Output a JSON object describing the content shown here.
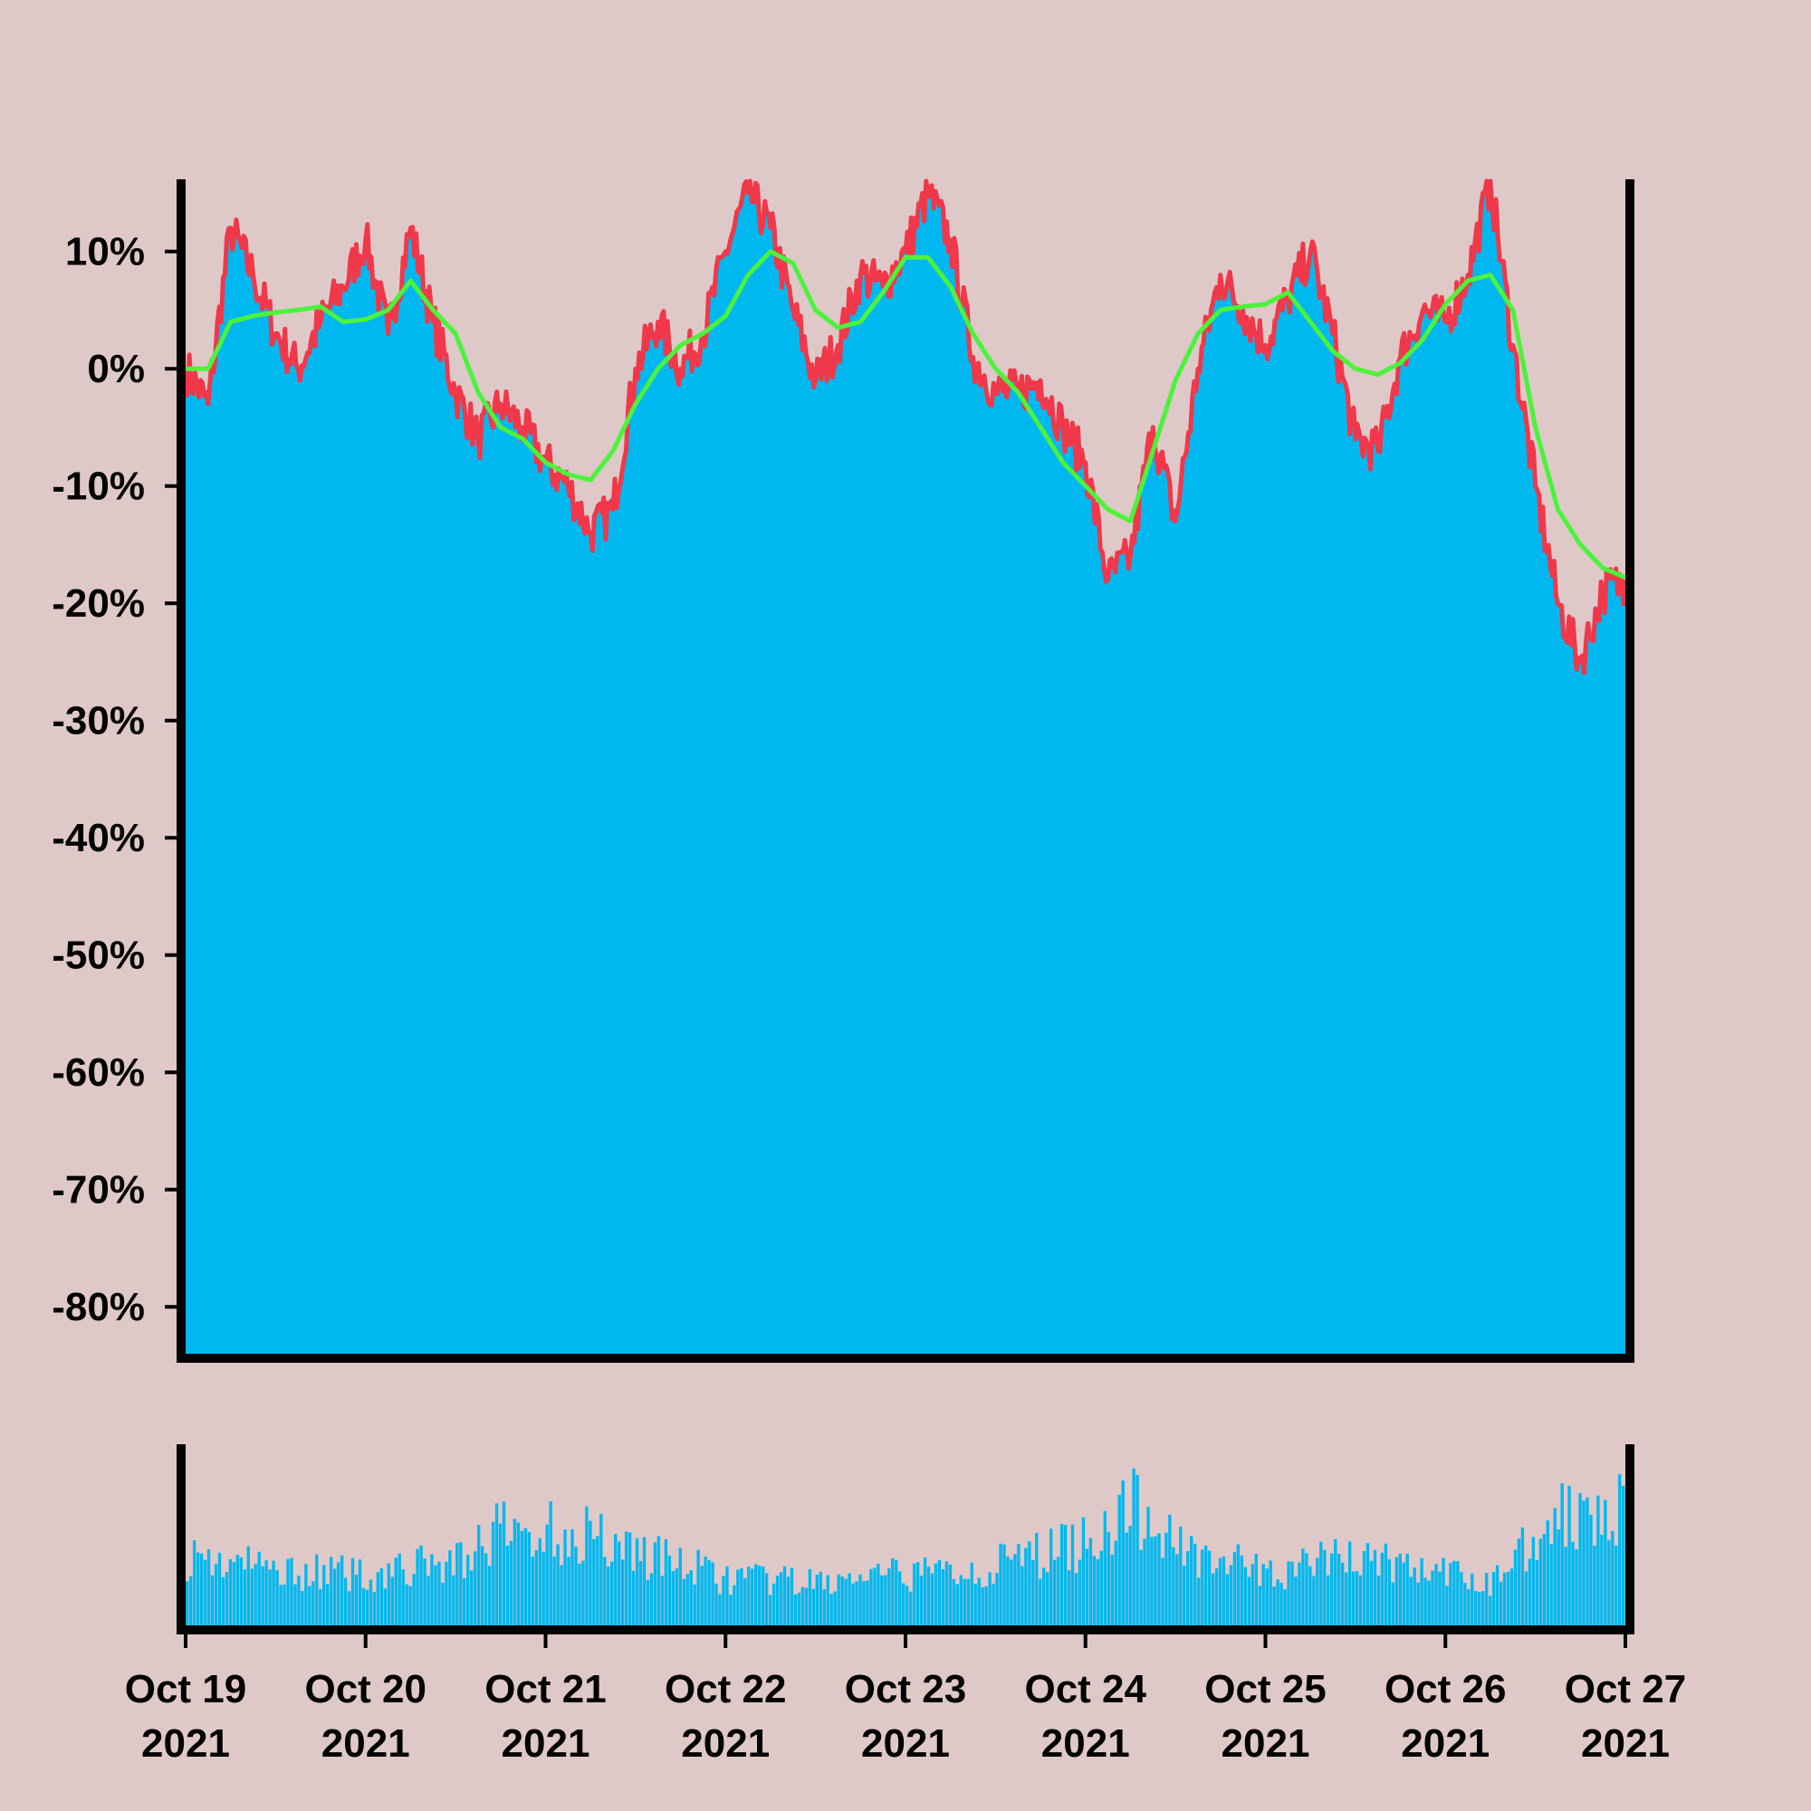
{
  "chart_data": {
    "type": "area",
    "x_start": "2021-10-19",
    "x_end": "2021-10-27",
    "ylim": [
      -84,
      16
    ],
    "y_ticks": [
      10,
      0,
      -10,
      -20,
      -30,
      -40,
      -50,
      -60,
      -70,
      -80
    ],
    "y_tick_labels": [
      "10%",
      "0%",
      "-10%",
      "-20%",
      "-30%",
      "-40%",
      "-50%",
      "-60%",
      "-70%",
      "-80%"
    ],
    "x_ticks": [
      "2021-10-19",
      "2021-10-20",
      "2021-10-21",
      "2021-10-22",
      "2021-10-23",
      "2021-10-24",
      "2021-10-25",
      "2021-10-26",
      "2021-10-27"
    ],
    "x_tick_labels": [
      {
        "date": "Oct 19",
        "year": "2021"
      },
      {
        "date": "Oct 20",
        "year": "2021"
      },
      {
        "date": "Oct 21",
        "year": "2021"
      },
      {
        "date": "Oct 22",
        "year": "2021"
      },
      {
        "date": "Oct 23",
        "year": "2021"
      },
      {
        "date": "Oct 24",
        "year": "2021"
      },
      {
        "date": "Oct 25",
        "year": "2021"
      },
      {
        "date": "Oct 26",
        "year": "2021"
      },
      {
        "date": "Oct 27",
        "year": "2021"
      }
    ],
    "price_series": {
      "x": [
        "2021-10-19 00:00",
        "2021-10-19 03:00",
        "2021-10-19 06:00",
        "2021-10-19 09:00",
        "2021-10-19 12:00",
        "2021-10-19 15:00",
        "2021-10-19 18:00",
        "2021-10-19 21:00",
        "2021-10-20 00:00",
        "2021-10-20 03:00",
        "2021-10-20 06:00",
        "2021-10-20 09:00",
        "2021-10-20 12:00",
        "2021-10-20 15:00",
        "2021-10-20 18:00",
        "2021-10-20 21:00",
        "2021-10-21 00:00",
        "2021-10-21 03:00",
        "2021-10-21 06:00",
        "2021-10-21 09:00",
        "2021-10-21 12:00",
        "2021-10-21 15:00",
        "2021-10-21 18:00",
        "2021-10-21 21:00",
        "2021-10-22 00:00",
        "2021-10-22 03:00",
        "2021-10-22 06:00",
        "2021-10-22 09:00",
        "2021-10-22 12:00",
        "2021-10-22 15:00",
        "2021-10-22 18:00",
        "2021-10-22 21:00",
        "2021-10-23 00:00",
        "2021-10-23 03:00",
        "2021-10-23 06:00",
        "2021-10-23 09:00",
        "2021-10-23 12:00",
        "2021-10-23 15:00",
        "2021-10-23 18:00",
        "2021-10-23 21:00",
        "2021-10-24 00:00",
        "2021-10-24 03:00",
        "2021-10-24 06:00",
        "2021-10-24 09:00",
        "2021-10-24 12:00",
        "2021-10-24 15:00",
        "2021-10-24 18:00",
        "2021-10-24 21:00",
        "2021-10-25 00:00",
        "2021-10-25 03:00",
        "2021-10-25 06:00",
        "2021-10-25 09:00",
        "2021-10-25 12:00",
        "2021-10-25 15:00",
        "2021-10-25 18:00",
        "2021-10-25 21:00",
        "2021-10-26 00:00",
        "2021-10-26 03:00",
        "2021-10-26 06:00",
        "2021-10-26 09:00",
        "2021-10-26 12:00",
        "2021-10-26 15:00",
        "2021-10-26 18:00",
        "2021-10-26 21:00",
        "2021-10-27 00:00"
      ],
      "y": [
        0,
        -3,
        12,
        8,
        3,
        0,
        4,
        7,
        11,
        3,
        12,
        4,
        -2,
        -6,
        -3,
        -5,
        -8,
        -10,
        -14,
        -12,
        0,
        4,
        0,
        3,
        10,
        15,
        12,
        5,
        -1,
        2,
        8,
        7,
        10,
        15,
        11,
        1,
        -2,
        -2,
        -1,
        -5,
        -8,
        -18,
        -16,
        -5,
        -13,
        0,
        8,
        5,
        2,
        6,
        10,
        3,
        -6,
        -7,
        1,
        5,
        4,
        8,
        16,
        2,
        -10,
        -20,
        -25,
        -19,
        -18
      ]
    },
    "moving_average": {
      "x": [
        "2021-10-19 00:00",
        "2021-10-19 03:00",
        "2021-10-19 06:00",
        "2021-10-19 09:00",
        "2021-10-19 12:00",
        "2021-10-19 15:00",
        "2021-10-19 18:00",
        "2021-10-19 21:00",
        "2021-10-20 00:00",
        "2021-10-20 03:00",
        "2021-10-20 06:00",
        "2021-10-20 09:00",
        "2021-10-20 12:00",
        "2021-10-20 15:00",
        "2021-10-20 18:00",
        "2021-10-20 21:00",
        "2021-10-21 00:00",
        "2021-10-21 03:00",
        "2021-10-21 06:00",
        "2021-10-21 09:00",
        "2021-10-21 12:00",
        "2021-10-21 15:00",
        "2021-10-21 18:00",
        "2021-10-21 21:00",
        "2021-10-22 00:00",
        "2021-10-22 03:00",
        "2021-10-22 06:00",
        "2021-10-22 09:00",
        "2021-10-22 12:00",
        "2021-10-22 15:00",
        "2021-10-22 18:00",
        "2021-10-22 21:00",
        "2021-10-23 00:00",
        "2021-10-23 03:00",
        "2021-10-23 06:00",
        "2021-10-23 09:00",
        "2021-10-23 12:00",
        "2021-10-23 15:00",
        "2021-10-23 18:00",
        "2021-10-23 21:00",
        "2021-10-24 00:00",
        "2021-10-24 03:00",
        "2021-10-24 06:00",
        "2021-10-24 09:00",
        "2021-10-24 12:00",
        "2021-10-24 15:00",
        "2021-10-24 18:00",
        "2021-10-24 21:00",
        "2021-10-25 00:00",
        "2021-10-25 03:00",
        "2021-10-25 06:00",
        "2021-10-25 09:00",
        "2021-10-25 12:00",
        "2021-10-25 15:00",
        "2021-10-25 18:00",
        "2021-10-25 21:00",
        "2021-10-26 00:00",
        "2021-10-26 03:00",
        "2021-10-26 06:00",
        "2021-10-26 09:00",
        "2021-10-26 12:00",
        "2021-10-26 15:00",
        "2021-10-26 18:00",
        "2021-10-26 21:00",
        "2021-10-27 00:00"
      ],
      "y": [
        0,
        0,
        4,
        4.5,
        4.8,
        5,
        5.3,
        4,
        4.2,
        5,
        7.5,
        5,
        3,
        -2,
        -5,
        -6,
        -8,
        -9,
        -9.5,
        -7,
        -3,
        0,
        2,
        3,
        4.5,
        8,
        10,
        9,
        5,
        3.5,
        4,
        6.5,
        9.5,
        9.5,
        7,
        3,
        0,
        -2,
        -5,
        -8,
        -10,
        -12,
        -13,
        -7,
        -1,
        3,
        5,
        5.3,
        5.5,
        6.5,
        4,
        1.5,
        0,
        -0.5,
        0.5,
        2.5,
        5.5,
        7.5,
        8,
        5,
        -5,
        -12,
        -15,
        -17,
        -17.8
      ]
    },
    "volume": {
      "x_start": "2021-10-19",
      "x_end": "2021-10-27",
      "anchors": [
        {
          "x": "2021-10-19 00:00",
          "level": 0.42
        },
        {
          "x": "2021-10-19 12:00",
          "level": 0.33
        },
        {
          "x": "2021-10-20 00:00",
          "level": 0.3
        },
        {
          "x": "2021-10-20 12:00",
          "level": 0.38
        },
        {
          "x": "2021-10-20 18:00",
          "level": 0.55
        },
        {
          "x": "2021-10-21 06:00",
          "level": 0.55
        },
        {
          "x": "2021-10-21 12:00",
          "level": 0.45
        },
        {
          "x": "2021-10-22 00:00",
          "level": 0.28
        },
        {
          "x": "2021-10-22 12:00",
          "level": 0.25
        },
        {
          "x": "2021-10-23 00:00",
          "level": 0.3
        },
        {
          "x": "2021-10-23 12:00",
          "level": 0.35
        },
        {
          "x": "2021-10-24 00:00",
          "level": 0.5
        },
        {
          "x": "2021-10-24 06:00",
          "level": 0.7
        },
        {
          "x": "2021-10-24 12:00",
          "level": 0.5
        },
        {
          "x": "2021-10-25 00:00",
          "level": 0.3
        },
        {
          "x": "2021-10-25 12:00",
          "level": 0.42
        },
        {
          "x": "2021-10-26 00:00",
          "level": 0.3
        },
        {
          "x": "2021-10-26 06:00",
          "level": 0.25
        },
        {
          "x": "2021-10-26 12:00",
          "level": 0.55
        },
        {
          "x": "2021-10-26 21:00",
          "level": 0.78
        },
        {
          "x": "2021-10-27 00:00",
          "level": 0.65
        }
      ]
    },
    "colors": {
      "background": "#dfc9c8",
      "area_fill": "#00b8f0",
      "price_line": "#f0384a",
      "moving_average": "#4cf23c",
      "axis": "#000000"
    },
    "grid": false,
    "legend": "none"
  }
}
